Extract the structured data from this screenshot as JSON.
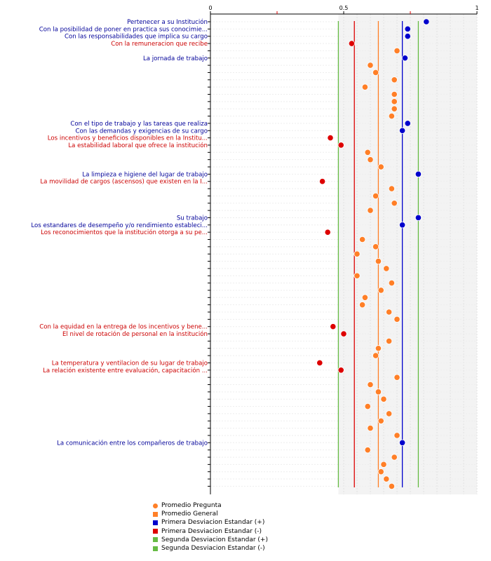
{
  "chart_data": {
    "type": "scatter",
    "orientation": "horizontal",
    "xlim": [
      0,
      1
    ],
    "x_ticks": [
      0,
      0.25,
      0.5,
      0.75,
      1
    ],
    "x_tick_labels": [
      "0",
      "",
      "0.5",
      "",
      "1"
    ],
    "reference_lines": {
      "promedio_general": 0.63,
      "primera_desv_pos": 0.72,
      "primera_desv_neg": 0.54,
      "segunda_desv_pos": 0.78,
      "segunda_desv_neg": 0.48
    },
    "colors": {
      "question": "#ff7f27",
      "above": "#0000cc",
      "below": "#dd0000",
      "general": "#ff7f27",
      "band1_pos": "#0000cc",
      "band1_neg": "#dd0000",
      "band2": "#66bb44"
    },
    "rows": [
      {
        "label": "Pertenecer a su Institución",
        "value": 0.81,
        "class": "above"
      },
      {
        "label": "Con la posibilidad de poner en practica sus conocimie...",
        "value": 0.74,
        "class": "above"
      },
      {
        "label": "Con las responsabilidades que implica su cargo",
        "value": 0.74,
        "class": "above"
      },
      {
        "label": "Con la remuneracion que recibe",
        "value": 0.53,
        "class": "below"
      },
      {
        "label": "",
        "value": 0.7,
        "class": "question"
      },
      {
        "label": "La jornada de trabajo",
        "value": 0.73,
        "class": "above"
      },
      {
        "label": "",
        "value": 0.6,
        "class": "question"
      },
      {
        "label": "",
        "value": 0.62,
        "class": "question"
      },
      {
        "label": "",
        "value": 0.69,
        "class": "question"
      },
      {
        "label": "",
        "value": 0.58,
        "class": "question"
      },
      {
        "label": "",
        "value": 0.69,
        "class": "question"
      },
      {
        "label": "",
        "value": 0.69,
        "class": "question"
      },
      {
        "label": "",
        "value": 0.69,
        "class": "question"
      },
      {
        "label": "",
        "value": 0.68,
        "class": "question"
      },
      {
        "label": "Con el tipo de trabajo y las tareas que realiza",
        "value": 0.74,
        "class": "above"
      },
      {
        "label": "Con las demandas y exigencias de su cargo",
        "value": 0.72,
        "class": "above"
      },
      {
        "label": "Los incentivos y beneficios disponibles en la Institu...",
        "value": 0.45,
        "class": "below"
      },
      {
        "label": "La estabilidad laboral que ofrece la institución",
        "value": 0.49,
        "class": "below"
      },
      {
        "label": "",
        "value": 0.59,
        "class": "question"
      },
      {
        "label": "",
        "value": 0.6,
        "class": "question"
      },
      {
        "label": "",
        "value": 0.64,
        "class": "question"
      },
      {
        "label": "La limpieza e higiene del lugar de trabajo",
        "value": 0.78,
        "class": "above"
      },
      {
        "label": "La movilidad de cargos (ascensos) que existen en la I...",
        "value": 0.42,
        "class": "below"
      },
      {
        "label": "",
        "value": 0.68,
        "class": "question"
      },
      {
        "label": "",
        "value": 0.62,
        "class": "question"
      },
      {
        "label": "",
        "value": 0.69,
        "class": "question"
      },
      {
        "label": "",
        "value": 0.6,
        "class": "question"
      },
      {
        "label": "Su trabajo",
        "value": 0.78,
        "class": "above"
      },
      {
        "label": "Los estandares de desempeño y/o rendimiento estableci...",
        "value": 0.72,
        "class": "above"
      },
      {
        "label": "Los reconocimientos que la institución otorga a su pe...",
        "value": 0.44,
        "class": "below"
      },
      {
        "label": "",
        "value": 0.57,
        "class": "question"
      },
      {
        "label": "",
        "value": 0.62,
        "class": "question"
      },
      {
        "label": "",
        "value": 0.55,
        "class": "question"
      },
      {
        "label": "",
        "value": 0.63,
        "class": "question"
      },
      {
        "label": "",
        "value": 0.66,
        "class": "question"
      },
      {
        "label": "",
        "value": 0.55,
        "class": "question"
      },
      {
        "label": "",
        "value": 0.68,
        "class": "question"
      },
      {
        "label": "",
        "value": 0.64,
        "class": "question"
      },
      {
        "label": "",
        "value": 0.58,
        "class": "question"
      },
      {
        "label": "",
        "value": 0.57,
        "class": "question"
      },
      {
        "label": "",
        "value": 0.67,
        "class": "question"
      },
      {
        "label": "",
        "value": 0.7,
        "class": "question"
      },
      {
        "label": "Con la equidad en la entrega de los incentivos y bene...",
        "value": 0.46,
        "class": "below"
      },
      {
        "label": "El nivel de rotación de personal en la institución",
        "value": 0.5,
        "class": "below"
      },
      {
        "label": "",
        "value": 0.67,
        "class": "question"
      },
      {
        "label": "",
        "value": 0.63,
        "class": "question"
      },
      {
        "label": "",
        "value": 0.62,
        "class": "question"
      },
      {
        "label": "La temperatura y ventilacion de su lugar de trabajo",
        "value": 0.41,
        "class": "below"
      },
      {
        "label": "La relación existente entre evaluación, capacitación ...",
        "value": 0.49,
        "class": "below"
      },
      {
        "label": "",
        "value": 0.7,
        "class": "question"
      },
      {
        "label": "",
        "value": 0.6,
        "class": "question"
      },
      {
        "label": "",
        "value": 0.63,
        "class": "question"
      },
      {
        "label": "",
        "value": 0.65,
        "class": "question"
      },
      {
        "label": "",
        "value": 0.59,
        "class": "question"
      },
      {
        "label": "",
        "value": 0.67,
        "class": "question"
      },
      {
        "label": "",
        "value": 0.64,
        "class": "question"
      },
      {
        "label": "",
        "value": 0.6,
        "class": "question"
      },
      {
        "label": "",
        "value": 0.7,
        "class": "question"
      },
      {
        "label": "La comunicación entre los compañeros de trabajo",
        "value": 0.72,
        "class": "above"
      },
      {
        "label": "",
        "value": 0.59,
        "class": "question"
      },
      {
        "label": "",
        "value": 0.69,
        "class": "question"
      },
      {
        "label": "",
        "value": 0.65,
        "class": "question"
      },
      {
        "label": "",
        "value": 0.64,
        "class": "question"
      },
      {
        "label": "",
        "value": 0.66,
        "class": "question"
      },
      {
        "label": "",
        "value": 0.68,
        "class": "question"
      }
    ],
    "legend": [
      {
        "label": "Promedio Pregunta",
        "shape": "circle",
        "color": "#ff7f27"
      },
      {
        "label": "Promedio General",
        "shape": "square",
        "color": "#ff7f27"
      },
      {
        "label": "Primera Desviacion Estandar (+)",
        "shape": "square",
        "color": "#0000cc"
      },
      {
        "label": "Primera Desviacion Estandar (-)",
        "shape": "square",
        "color": "#dd0000"
      },
      {
        "label": "Segunda Desviacion Estandar (+)",
        "shape": "square",
        "color": "#66bb44"
      },
      {
        "label": "Segunda Desviacion Estandar (-)",
        "shape": "square",
        "color": "#66bb44"
      }
    ]
  }
}
